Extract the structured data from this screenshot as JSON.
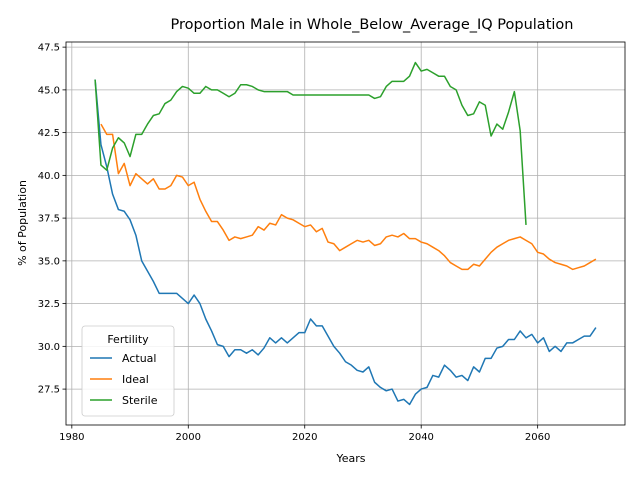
{
  "chart_data": {
    "type": "line",
    "title": "Proportion Male in Whole_Below_Average_IQ Population",
    "xlabel": "Years",
    "ylabel": "% of Population",
    "xlim": [
      1979,
      2075
    ],
    "ylim": [
      25.4,
      47.8
    ],
    "xticks": [
      1980,
      2000,
      2020,
      2040,
      2060
    ],
    "xtick_labels": [
      "1980",
      "2000",
      "2020",
      "2040",
      "2060"
    ],
    "yticks": [
      27.5,
      30.0,
      32.5,
      35.0,
      37.5,
      40.0,
      42.5,
      45.0,
      47.5
    ],
    "ytick_labels": [
      "27.5",
      "30.0",
      "32.5",
      "35.0",
      "37.5",
      "40.0",
      "42.5",
      "45.0",
      "47.5"
    ],
    "grid": true,
    "legend": {
      "title": "Fertility",
      "placement": "lower-left"
    },
    "series": [
      {
        "name": "Actual",
        "color": "#1f77b4",
        "x": [
          1984,
          1985,
          1986,
          1987,
          1988,
          1989,
          1990,
          1991,
          1992,
          1993,
          1994,
          1995,
          1996,
          1997,
          1998,
          1999,
          2000,
          2001,
          2002,
          2003,
          2004,
          2005,
          2006,
          2007,
          2008,
          2009,
          2010,
          2011,
          2012,
          2013,
          2014,
          2015,
          2016,
          2017,
          2018,
          2019,
          2020,
          2021,
          2022,
          2023,
          2024,
          2025,
          2026,
          2027,
          2028,
          2029,
          2030,
          2031,
          2032,
          2033,
          2034,
          2035,
          2036,
          2037,
          2038,
          2039,
          2040,
          2041,
          2042,
          2043,
          2044,
          2045,
          2046,
          2047,
          2048,
          2049,
          2050,
          2051,
          2052,
          2053,
          2054,
          2055,
          2056,
          2057,
          2058,
          2059,
          2060,
          2061,
          2062,
          2063,
          2064,
          2065,
          2066,
          2067,
          2068,
          2069,
          2070
        ],
        "y": [
          45.6,
          41.8,
          40.5,
          38.9,
          38.0,
          37.9,
          37.4,
          36.5,
          35.0,
          34.4,
          33.8,
          33.1,
          33.1,
          33.1,
          33.1,
          32.8,
          32.5,
          33.0,
          32.5,
          31.6,
          30.9,
          30.1,
          30.0,
          29.4,
          29.8,
          29.8,
          29.6,
          29.8,
          29.5,
          29.9,
          30.5,
          30.2,
          30.5,
          30.2,
          30.5,
          30.8,
          30.8,
          31.6,
          31.2,
          31.2,
          30.6,
          30.0,
          29.6,
          29.1,
          28.9,
          28.6,
          28.5,
          28.8,
          27.9,
          27.6,
          27.4,
          27.5,
          26.8,
          26.9,
          26.6,
          27.2,
          27.5,
          27.6,
          28.3,
          28.2,
          28.9,
          28.6,
          28.2,
          28.3,
          28.0,
          28.8,
          28.5,
          29.3,
          29.3,
          29.9,
          30.0,
          30.4,
          30.4,
          30.9,
          30.5,
          30.7,
          30.2,
          30.5,
          29.7,
          30.0,
          29.7,
          30.2,
          30.2,
          30.4,
          30.6,
          30.6,
          31.1
        ]
      },
      {
        "name": "Ideal",
        "color": "#ff7f0e",
        "x": [
          1985,
          1986,
          1987,
          1988,
          1989,
          1990,
          1991,
          1992,
          1993,
          1994,
          1995,
          1996,
          1997,
          1998,
          1999,
          2000,
          2001,
          2002,
          2003,
          2004,
          2005,
          2006,
          2007,
          2008,
          2009,
          2010,
          2011,
          2012,
          2013,
          2014,
          2015,
          2016,
          2017,
          2018,
          2019,
          2020,
          2021,
          2022,
          2023,
          2024,
          2025,
          2026,
          2027,
          2028,
          2029,
          2030,
          2031,
          2032,
          2033,
          2034,
          2035,
          2036,
          2037,
          2038,
          2039,
          2040,
          2041,
          2042,
          2043,
          2044,
          2045,
          2046,
          2047,
          2048,
          2049,
          2050,
          2051,
          2052,
          2053,
          2054,
          2055,
          2056,
          2057,
          2058,
          2059,
          2060,
          2061,
          2062,
          2063,
          2064,
          2065,
          2066,
          2067,
          2068,
          2069,
          2070
        ],
        "y": [
          43.0,
          42.4,
          42.4,
          40.1,
          40.7,
          39.4,
          40.1,
          39.8,
          39.5,
          39.8,
          39.2,
          39.2,
          39.4,
          40.0,
          39.9,
          39.4,
          39.6,
          38.6,
          37.9,
          37.3,
          37.3,
          36.8,
          36.2,
          36.4,
          36.3,
          36.4,
          36.5,
          37.0,
          36.8,
          37.2,
          37.1,
          37.7,
          37.5,
          37.4,
          37.2,
          37.0,
          37.1,
          36.7,
          36.9,
          36.1,
          36.0,
          35.6,
          35.8,
          36.0,
          36.2,
          36.1,
          36.2,
          35.9,
          36.0,
          36.4,
          36.5,
          36.4,
          36.6,
          36.3,
          36.3,
          36.1,
          36.0,
          35.8,
          35.6,
          35.3,
          34.9,
          34.7,
          34.5,
          34.5,
          34.8,
          34.7,
          35.1,
          35.5,
          35.8,
          36.0,
          36.2,
          36.3,
          36.4,
          36.2,
          36.0,
          35.5,
          35.4,
          35.1,
          34.9,
          34.8,
          34.7,
          34.5,
          34.6,
          34.7,
          34.9,
          35.1
        ]
      },
      {
        "name": "Sterile",
        "color": "#2ca02c",
        "x": [
          1984,
          1985,
          1986,
          1987,
          1988,
          1989,
          1990,
          1991,
          1992,
          1993,
          1994,
          1995,
          1996,
          1997,
          1998,
          1999,
          2000,
          2001,
          2002,
          2003,
          2004,
          2005,
          2006,
          2007,
          2008,
          2009,
          2010,
          2011,
          2012,
          2013,
          2014,
          2015,
          2016,
          2017,
          2018,
          2019,
          2020,
          2021,
          2022,
          2023,
          2024,
          2025,
          2026,
          2027,
          2028,
          2029,
          2030,
          2031,
          2032,
          2033,
          2034,
          2035,
          2036,
          2037,
          2038,
          2039,
          2040,
          2041,
          2042,
          2043,
          2044,
          2045,
          2046,
          2047,
          2048,
          2049,
          2050,
          2051,
          2052,
          2053,
          2054,
          2055,
          2056,
          2057,
          2058
        ],
        "y": [
          45.6,
          40.6,
          40.3,
          41.6,
          42.2,
          41.9,
          41.1,
          42.4,
          42.4,
          43.0,
          43.5,
          43.6,
          44.2,
          44.4,
          44.9,
          45.2,
          45.1,
          44.8,
          44.8,
          45.2,
          45.0,
          45.0,
          44.8,
          44.6,
          44.8,
          45.3,
          45.3,
          45.2,
          45.0,
          44.9,
          44.9,
          44.9,
          44.9,
          44.9,
          44.7,
          44.7,
          44.7,
          44.7,
          44.7,
          44.7,
          44.7,
          44.7,
          44.7,
          44.7,
          44.7,
          44.7,
          44.7,
          44.7,
          44.5,
          44.6,
          45.2,
          45.5,
          45.5,
          45.5,
          45.8,
          46.6,
          46.1,
          46.2,
          46.0,
          45.8,
          45.8,
          45.2,
          45.0,
          44.1,
          43.5,
          43.6,
          44.3,
          44.1,
          42.3,
          43.0,
          42.7,
          43.7,
          44.9,
          42.6,
          37.1
        ]
      }
    ]
  }
}
